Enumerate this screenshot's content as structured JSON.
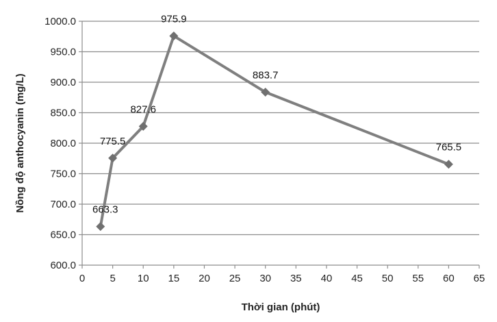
{
  "chart_data": {
    "type": "line",
    "title": "",
    "xlabel": "Thời gian (phút)",
    "ylabel": "Nồng độ anthocyanin (mg/L)",
    "x": [
      3,
      5,
      10,
      15,
      30,
      60
    ],
    "series": [
      {
        "values": [
          663.3,
          775.5,
          827.6,
          975.9,
          883.7,
          765.5
        ]
      }
    ],
    "data_labels": [
      "663.3",
      "775.5",
      "827.6",
      "975.9",
      "883.7",
      "765.5"
    ],
    "xlim": [
      0,
      65
    ],
    "ylim": [
      600,
      1000
    ],
    "x_ticks": [
      "0",
      "5",
      "10",
      "15",
      "20",
      "25",
      "30",
      "35",
      "40",
      "45",
      "50",
      "55",
      "60",
      "65"
    ],
    "y_ticks": [
      "600.0",
      "650.0",
      "700.0",
      "750.0",
      "800.0",
      "850.0",
      "900.0",
      "950.0",
      "1000.0"
    ],
    "grid": "horizontal",
    "legend": "none",
    "line_color": "#7f7f7f",
    "marker": "diamond",
    "marker_color": "#707070",
    "grid_color": "#8c8c8c",
    "axis_color": "#8c8c8c"
  }
}
